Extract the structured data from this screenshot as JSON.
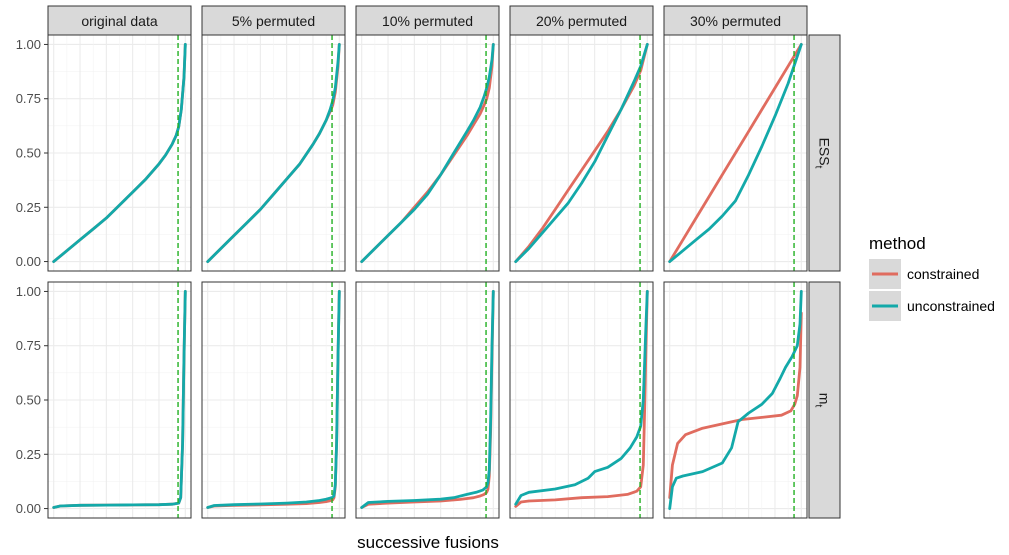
{
  "chart_data": {
    "type": "line",
    "xlabel": "successive fusions",
    "ylabel": "",
    "ylim": [
      0,
      1
    ],
    "y_ticks": [
      "0.00",
      "0.25",
      "0.50",
      "0.75",
      "1.00"
    ],
    "y_tick_values": [
      0,
      0.25,
      0.5,
      0.75,
      1
    ],
    "x_ticks_visible": false,
    "grid": true,
    "legend_position": "right",
    "legend": {
      "title": "method",
      "entries": [
        {
          "name": "constrained",
          "color": "#E06C5F"
        },
        {
          "name": "unconstrained",
          "color": "#13A9A9"
        }
      ]
    },
    "reference_line": {
      "color": "#22B022",
      "style": "dashed",
      "x_fraction": 0.945
    },
    "columns": [
      "original data",
      "5% permuted",
      "10% permuted",
      "20% permuted",
      "30% permuted"
    ],
    "rows": [
      {
        "label": "ESS",
        "subscript": "t"
      },
      {
        "label": "m",
        "subscript": "t"
      }
    ],
    "panels": [
      [
        {
          "series": [
            {
              "name": "constrained",
              "x": [
                0,
                0.1,
                0.2,
                0.3,
                0.4,
                0.5,
                0.6,
                0.7,
                0.8,
                0.85,
                0.9,
                0.93,
                0.95,
                0.97,
                0.99,
                1.0
              ],
              "y": [
                0,
                0.05,
                0.1,
                0.15,
                0.2,
                0.26,
                0.32,
                0.38,
                0.45,
                0.49,
                0.54,
                0.58,
                0.62,
                0.7,
                0.85,
                1.0
              ]
            },
            {
              "name": "unconstrained",
              "x": [
                0,
                0.1,
                0.2,
                0.3,
                0.4,
                0.5,
                0.6,
                0.7,
                0.8,
                0.85,
                0.9,
                0.93,
                0.95,
                0.97,
                0.99,
                1.0
              ],
              "y": [
                0,
                0.05,
                0.1,
                0.15,
                0.2,
                0.26,
                0.32,
                0.38,
                0.45,
                0.49,
                0.54,
                0.58,
                0.62,
                0.7,
                0.85,
                1.0
              ]
            }
          ]
        },
        {
          "series": [
            {
              "name": "constrained",
              "x": [
                0,
                0.1,
                0.2,
                0.3,
                0.4,
                0.5,
                0.6,
                0.7,
                0.8,
                0.85,
                0.9,
                0.93,
                0.95,
                0.97,
                0.99,
                1.0
              ],
              "y": [
                0,
                0.06,
                0.12,
                0.18,
                0.24,
                0.31,
                0.38,
                0.45,
                0.54,
                0.59,
                0.65,
                0.69,
                0.72,
                0.78,
                0.9,
                1.0
              ]
            },
            {
              "name": "unconstrained",
              "x": [
                0,
                0.1,
                0.2,
                0.3,
                0.4,
                0.5,
                0.6,
                0.7,
                0.8,
                0.85,
                0.9,
                0.93,
                0.95,
                0.97,
                0.99,
                1.0
              ],
              "y": [
                0,
                0.06,
                0.12,
                0.18,
                0.24,
                0.31,
                0.38,
                0.45,
                0.54,
                0.59,
                0.65,
                0.7,
                0.74,
                0.8,
                0.92,
                1.0
              ]
            }
          ]
        },
        {
          "series": [
            {
              "name": "constrained",
              "x": [
                0,
                0.1,
                0.2,
                0.3,
                0.4,
                0.5,
                0.6,
                0.7,
                0.8,
                0.85,
                0.9,
                0.93,
                0.95,
                0.97,
                0.99,
                1.0
              ],
              "y": [
                0,
                0.06,
                0.12,
                0.18,
                0.25,
                0.32,
                0.4,
                0.49,
                0.58,
                0.63,
                0.68,
                0.72,
                0.75,
                0.8,
                0.9,
                1.0
              ]
            },
            {
              "name": "unconstrained",
              "x": [
                0,
                0.1,
                0.2,
                0.3,
                0.4,
                0.5,
                0.6,
                0.7,
                0.8,
                0.85,
                0.9,
                0.93,
                0.95,
                0.97,
                0.99,
                1.0
              ],
              "y": [
                0,
                0.06,
                0.12,
                0.18,
                0.24,
                0.31,
                0.4,
                0.5,
                0.6,
                0.65,
                0.71,
                0.76,
                0.8,
                0.85,
                0.93,
                1.0
              ]
            }
          ]
        },
        {
          "series": [
            {
              "name": "constrained",
              "x": [
                0,
                0.1,
                0.2,
                0.3,
                0.4,
                0.5,
                0.6,
                0.7,
                0.8,
                0.9,
                0.95,
                1.0
              ],
              "y": [
                0,
                0.07,
                0.15,
                0.24,
                0.33,
                0.42,
                0.51,
                0.6,
                0.7,
                0.81,
                0.88,
                1.0
              ]
            },
            {
              "name": "unconstrained",
              "x": [
                0,
                0.1,
                0.2,
                0.3,
                0.4,
                0.5,
                0.6,
                0.7,
                0.8,
                0.9,
                0.95,
                1.0
              ],
              "y": [
                0,
                0.06,
                0.13,
                0.2,
                0.27,
                0.36,
                0.46,
                0.58,
                0.7,
                0.83,
                0.9,
                1.0
              ]
            }
          ]
        },
        {
          "series": [
            {
              "name": "constrained",
              "x": [
                0,
                0.1,
                0.2,
                0.3,
                0.4,
                0.5,
                0.6,
                0.7,
                0.8,
                0.9,
                1.0
              ],
              "y": [
                0,
                0.1,
                0.2,
                0.3,
                0.4,
                0.5,
                0.6,
                0.7,
                0.8,
                0.9,
                1.0
              ]
            },
            {
              "name": "unconstrained",
              "x": [
                0,
                0.1,
                0.2,
                0.3,
                0.4,
                0.5,
                0.6,
                0.7,
                0.8,
                0.9,
                0.95,
                1.0
              ],
              "y": [
                0,
                0.05,
                0.1,
                0.15,
                0.21,
                0.28,
                0.4,
                0.53,
                0.67,
                0.82,
                0.91,
                1.0
              ]
            }
          ]
        }
      ],
      [
        {
          "series": [
            {
              "name": "constrained",
              "x": [
                0,
                0.05,
                0.2,
                0.4,
                0.6,
                0.8,
                0.9,
                0.95,
                0.965,
                0.98,
                0.99,
                1.0
              ],
              "y": [
                0.005,
                0.012,
                0.015,
                0.016,
                0.017,
                0.018,
                0.02,
                0.025,
                0.05,
                0.3,
                0.7,
                1.0
              ]
            },
            {
              "name": "unconstrained",
              "x": [
                0,
                0.05,
                0.2,
                0.4,
                0.6,
                0.8,
                0.9,
                0.95,
                0.965,
                0.98,
                0.99,
                1.0
              ],
              "y": [
                0.005,
                0.012,
                0.015,
                0.016,
                0.017,
                0.018,
                0.02,
                0.025,
                0.05,
                0.3,
                0.7,
                1.0
              ]
            }
          ]
        },
        {
          "series": [
            {
              "name": "constrained",
              "x": [
                0,
                0.05,
                0.2,
                0.4,
                0.6,
                0.75,
                0.85,
                0.9,
                0.93,
                0.95,
                0.96,
                0.97,
                0.98,
                0.99,
                1.0
              ],
              "y": [
                0.005,
                0.012,
                0.015,
                0.017,
                0.02,
                0.023,
                0.028,
                0.032,
                0.036,
                0.04,
                0.05,
                0.1,
                0.3,
                0.7,
                1.0
              ]
            },
            {
              "name": "unconstrained",
              "x": [
                0,
                0.05,
                0.2,
                0.4,
                0.6,
                0.75,
                0.85,
                0.9,
                0.93,
                0.95,
                0.96,
                0.97,
                0.98,
                0.99,
                1.0
              ],
              "y": [
                0.005,
                0.014,
                0.018,
                0.021,
                0.025,
                0.03,
                0.037,
                0.043,
                0.048,
                0.052,
                0.06,
                0.11,
                0.3,
                0.7,
                1.0
              ]
            }
          ]
        },
        {
          "series": [
            {
              "name": "constrained",
              "x": [
                0,
                0.05,
                0.2,
                0.4,
                0.6,
                0.75,
                0.85,
                0.9,
                0.93,
                0.95,
                0.96,
                0.97,
                0.98,
                0.99,
                1.0
              ],
              "y": [
                0.005,
                0.02,
                0.025,
                0.03,
                0.035,
                0.042,
                0.05,
                0.058,
                0.065,
                0.075,
                0.09,
                0.15,
                0.35,
                0.7,
                1.0
              ]
            },
            {
              "name": "unconstrained",
              "x": [
                0,
                0.05,
                0.2,
                0.4,
                0.6,
                0.7,
                0.8,
                0.87,
                0.92,
                0.95,
                0.96,
                0.97,
                0.98,
                0.99,
                1.0
              ],
              "y": [
                0.005,
                0.028,
                0.033,
                0.037,
                0.043,
                0.05,
                0.065,
                0.075,
                0.085,
                0.1,
                0.12,
                0.18,
                0.4,
                0.75,
                1.0
              ]
            }
          ]
        },
        {
          "series": [
            {
              "name": "constrained",
              "x": [
                0,
                0.04,
                0.1,
                0.3,
                0.5,
                0.7,
                0.85,
                0.92,
                0.95,
                0.97,
                0.98,
                0.99,
                1.0
              ],
              "y": [
                0.01,
                0.03,
                0.035,
                0.04,
                0.05,
                0.055,
                0.065,
                0.08,
                0.1,
                0.2,
                0.45,
                0.75,
                1.0
              ]
            },
            {
              "name": "unconstrained",
              "x": [
                0,
                0.04,
                0.1,
                0.3,
                0.45,
                0.55,
                0.6,
                0.7,
                0.8,
                0.87,
                0.92,
                0.95,
                0.97,
                0.99,
                1.0
              ],
              "y": [
                0.02,
                0.06,
                0.075,
                0.09,
                0.11,
                0.14,
                0.17,
                0.19,
                0.23,
                0.28,
                0.33,
                0.38,
                0.5,
                0.85,
                1.0
              ]
            }
          ]
        },
        {
          "series": [
            {
              "name": "constrained",
              "x": [
                0,
                0.02,
                0.06,
                0.12,
                0.25,
                0.4,
                0.55,
                0.7,
                0.85,
                0.92,
                0.95,
                0.97,
                0.99,
                1.0
              ],
              "y": [
                0.05,
                0.2,
                0.3,
                0.34,
                0.37,
                0.39,
                0.41,
                0.42,
                0.43,
                0.45,
                0.48,
                0.52,
                0.65,
                0.9
              ]
            },
            {
              "name": "unconstrained",
              "x": [
                0,
                0.02,
                0.05,
                0.1,
                0.25,
                0.4,
                0.47,
                0.52,
                0.6,
                0.7,
                0.78,
                0.84,
                0.88,
                0.93,
                0.97,
                0.99,
                1.0
              ],
              "y": [
                0.0,
                0.1,
                0.14,
                0.15,
                0.17,
                0.21,
                0.28,
                0.4,
                0.44,
                0.48,
                0.53,
                0.6,
                0.65,
                0.7,
                0.75,
                0.85,
                1.0
              ]
            }
          ]
        }
      ]
    ]
  }
}
